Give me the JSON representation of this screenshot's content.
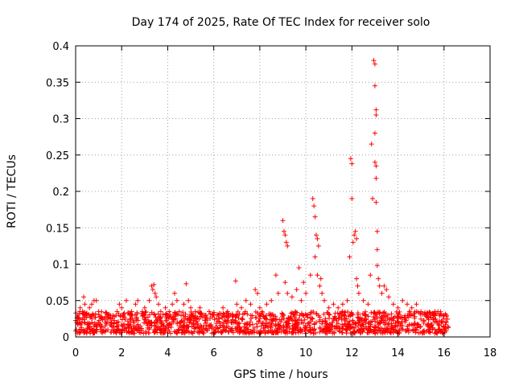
{
  "chart_data": {
    "type": "scatter",
    "title": "Day 174 of 2025, Rate Of TEC Index for receiver solo",
    "xlabel": "GPS time / hours",
    "ylabel": "ROTI / TECUs",
    "xlim": [
      0,
      18
    ],
    "ylim": [
      0,
      0.4
    ],
    "x_ticks": [
      0,
      2,
      4,
      6,
      8,
      10,
      12,
      14,
      16,
      18
    ],
    "y_ticks": [
      0,
      0.05,
      0.1,
      0.15,
      0.2,
      0.25,
      0.3,
      0.35,
      0.4
    ],
    "x_tick_labels": [
      "0",
      "2",
      "4",
      "6",
      "8",
      "10",
      "12",
      "14",
      "16",
      "18"
    ],
    "y_tick_labels": [
      "0",
      "0.05",
      "0.1",
      "0.15",
      "0.2",
      "0.25",
      "0.3",
      "0.35",
      "0.4"
    ],
    "grid": true,
    "marker": "+",
    "color": "#ff0000",
    "series": [
      {
        "name": "ROTI",
        "points": [
          [
            0.05,
            0.02
          ],
          [
            0.1,
            0.03
          ],
          [
            0.15,
            0.025
          ],
          [
            0.2,
            0.04
          ],
          [
            0.3,
            0.035
          ],
          [
            0.35,
            0.055
          ],
          [
            0.4,
            0.045
          ],
          [
            0.5,
            0.03
          ],
          [
            0.6,
            0.04
          ],
          [
            0.7,
            0.045
          ],
          [
            0.8,
            0.05
          ],
          [
            0.9,
            0.05
          ],
          [
            1.0,
            0.035
          ],
          [
            1.1,
            0.025
          ],
          [
            1.3,
            0.02
          ],
          [
            1.4,
            0.01
          ],
          [
            1.6,
            0.025
          ],
          [
            1.8,
            0.035
          ],
          [
            1.9,
            0.045
          ],
          [
            2.0,
            0.04
          ],
          [
            2.2,
            0.05
          ],
          [
            2.4,
            0.03
          ],
          [
            2.6,
            0.045
          ],
          [
            2.7,
            0.05
          ],
          [
            2.9,
            0.035
          ],
          [
            3.0,
            0.04
          ],
          [
            3.2,
            0.05
          ],
          [
            3.3,
            0.07
          ],
          [
            3.35,
            0.065
          ],
          [
            3.4,
            0.072
          ],
          [
            3.45,
            0.06
          ],
          [
            3.5,
            0.055
          ],
          [
            3.6,
            0.045
          ],
          [
            3.7,
            0.035
          ],
          [
            3.9,
            0.04
          ],
          [
            4.0,
            0.03
          ],
          [
            4.2,
            0.045
          ],
          [
            4.3,
            0.06
          ],
          [
            4.4,
            0.05
          ],
          [
            4.5,
            0.035
          ],
          [
            4.7,
            0.045
          ],
          [
            4.8,
            0.073
          ],
          [
            4.9,
            0.05
          ],
          [
            5.0,
            0.04
          ],
          [
            5.2,
            0.035
          ],
          [
            5.4,
            0.04
          ],
          [
            5.6,
            0.03
          ],
          [
            5.8,
            0.035
          ],
          [
            6.0,
            0.03
          ],
          [
            6.2,
            0.03
          ],
          [
            6.4,
            0.04
          ],
          [
            6.6,
            0.035
          ],
          [
            6.8,
            0.03
          ],
          [
            6.95,
            0.077
          ],
          [
            7.0,
            0.045
          ],
          [
            7.2,
            0.04
          ],
          [
            7.4,
            0.05
          ],
          [
            7.6,
            0.045
          ],
          [
            7.8,
            0.065
          ],
          [
            7.9,
            0.06
          ],
          [
            8.0,
            0.04
          ],
          [
            8.3,
            0.045
          ],
          [
            8.5,
            0.05
          ],
          [
            8.7,
            0.085
          ],
          [
            8.8,
            0.06
          ],
          [
            9.0,
            0.16
          ],
          [
            9.05,
            0.145
          ],
          [
            9.1,
            0.14
          ],
          [
            9.15,
            0.13
          ],
          [
            9.2,
            0.125
          ],
          [
            9.1,
            0.075
          ],
          [
            9.2,
            0.06
          ],
          [
            9.4,
            0.055
          ],
          [
            9.6,
            0.065
          ],
          [
            9.7,
            0.095
          ],
          [
            9.8,
            0.05
          ],
          [
            9.9,
            0.075
          ],
          [
            10.0,
            0.06
          ],
          [
            10.2,
            0.085
          ],
          [
            10.3,
            0.19
          ],
          [
            10.35,
            0.18
          ],
          [
            10.4,
            0.165
          ],
          [
            10.45,
            0.14
          ],
          [
            10.4,
            0.11
          ],
          [
            10.5,
            0.135
          ],
          [
            10.55,
            0.125
          ],
          [
            10.5,
            0.085
          ],
          [
            10.6,
            0.07
          ],
          [
            10.65,
            0.08
          ],
          [
            10.7,
            0.06
          ],
          [
            10.8,
            0.05
          ],
          [
            11.0,
            0.04
          ],
          [
            11.2,
            0.045
          ],
          [
            11.4,
            0.04
          ],
          [
            11.6,
            0.045
          ],
          [
            11.8,
            0.05
          ],
          [
            11.9,
            0.11
          ],
          [
            11.95,
            0.245
          ],
          [
            12.0,
            0.238
          ],
          [
            12.0,
            0.19
          ],
          [
            12.05,
            0.13
          ],
          [
            12.1,
            0.14
          ],
          [
            12.15,
            0.145
          ],
          [
            12.2,
            0.135
          ],
          [
            12.2,
            0.08
          ],
          [
            12.25,
            0.07
          ],
          [
            12.3,
            0.06
          ],
          [
            12.5,
            0.05
          ],
          [
            12.7,
            0.045
          ],
          [
            12.8,
            0.085
          ],
          [
            12.85,
            0.265
          ],
          [
            12.9,
            0.19
          ],
          [
            12.95,
            0.38
          ],
          [
            13.0,
            0.375
          ],
          [
            13.0,
            0.345
          ],
          [
            13.05,
            0.312
          ],
          [
            13.05,
            0.305
          ],
          [
            13.0,
            0.28
          ],
          [
            13.0,
            0.24
          ],
          [
            13.05,
            0.235
          ],
          [
            13.05,
            0.218
          ],
          [
            13.05,
            0.185
          ],
          [
            13.1,
            0.145
          ],
          [
            13.1,
            0.12
          ],
          [
            13.1,
            0.098
          ],
          [
            13.15,
            0.08
          ],
          [
            13.2,
            0.07
          ],
          [
            13.3,
            0.06
          ],
          [
            13.4,
            0.07
          ],
          [
            13.5,
            0.065
          ],
          [
            13.6,
            0.055
          ],
          [
            13.8,
            0.045
          ],
          [
            14.0,
            0.04
          ],
          [
            14.2,
            0.05
          ],
          [
            14.4,
            0.045
          ],
          [
            14.6,
            0.04
          ],
          [
            14.8,
            0.045
          ],
          [
            15.0,
            0.035
          ],
          [
            15.2,
            0.03
          ],
          [
            15.4,
            0.03
          ],
          [
            15.6,
            0.035
          ],
          [
            15.8,
            0.03
          ],
          [
            16.0,
            0.025
          ],
          [
            16.1,
            0.02
          ]
        ],
        "background_band": {
          "x_range": [
            0,
            16.2
          ],
          "y_range": [
            0.005,
            0.035
          ],
          "density_note": "dense band of low ROTI values"
        }
      }
    ]
  }
}
